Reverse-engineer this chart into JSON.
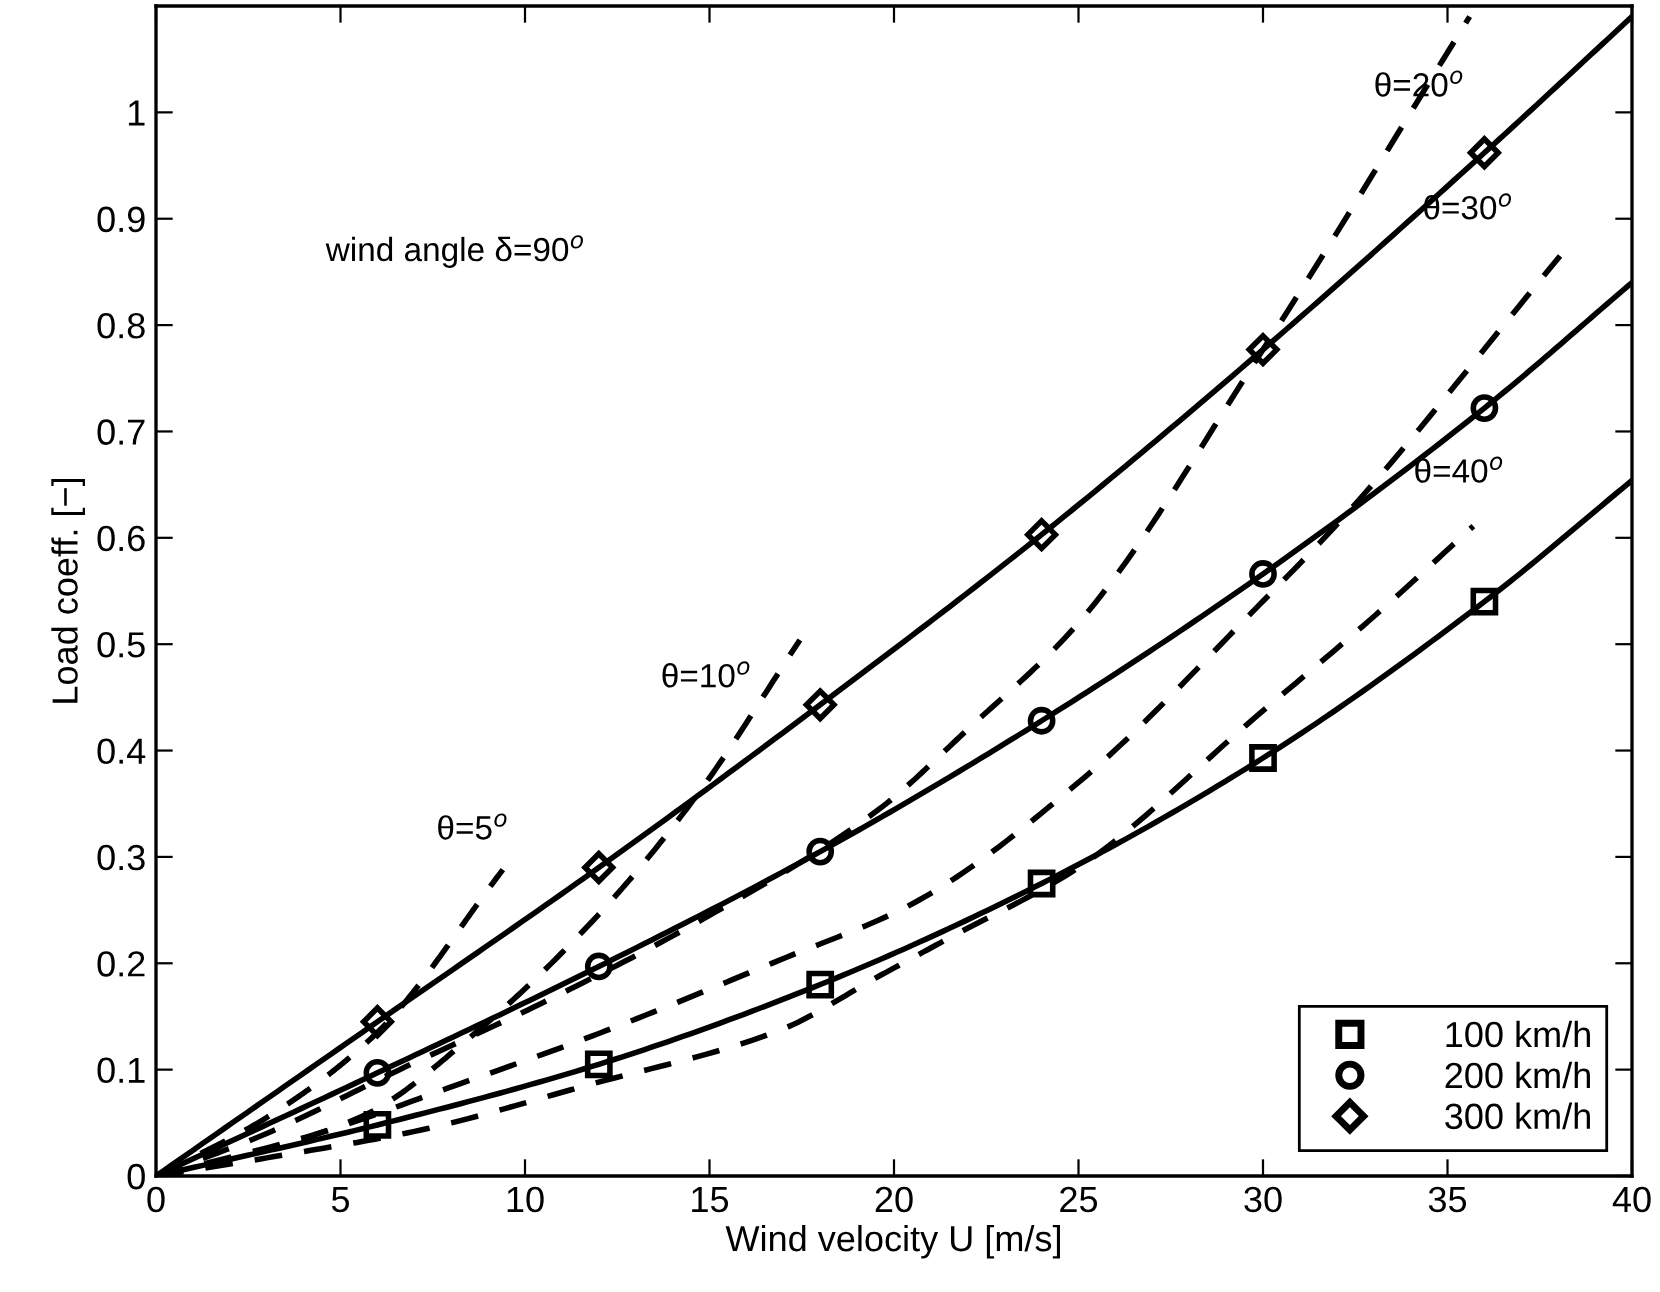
{
  "chart_data": {
    "type": "line",
    "xlabel": "Wind velocity U [m/s]",
    "ylabel": "Load coeff. [−]",
    "xlim": [
      0,
      40
    ],
    "ylim": [
      0,
      1.1
    ],
    "xticks": [
      0,
      5,
      10,
      15,
      20,
      25,
      30,
      35,
      40
    ],
    "yticks": [
      0,
      {
        "value": 0.1,
        "label": "0.1"
      },
      {
        "value": 0.2,
        "label": "0.2"
      },
      {
        "value": 0.3,
        "label": "0.3"
      },
      {
        "value": 0.4,
        "label": "0.4"
      },
      {
        "value": 0.5,
        "label": "0.5"
      },
      {
        "value": 0.6,
        "label": "0.6"
      },
      {
        "value": 0.7,
        "label": "0.7"
      },
      {
        "value": 0.8,
        "label": "0.8"
      },
      {
        "value": 0.9,
        "label": "0.9"
      },
      1
    ],
    "grid": false,
    "legend": "bottom right",
    "series": [
      {
        "color": "#000000",
        "line_style": "solid",
        "marker": "none",
        "x": [
          0,
          6,
          12,
          18,
          24,
          30,
          36,
          40
        ],
        "values": [
          0,
          0.048,
          0.105,
          0.18,
          0.275,
          0.393,
          0.54,
          0.654
        ]
      },
      {
        "color": "#000000",
        "line_style": "solid",
        "marker": "none",
        "x": [
          0,
          6,
          12,
          18,
          24,
          30,
          36,
          40
        ],
        "values": [
          0,
          0.097,
          0.197,
          0.305,
          0.428,
          0.566,
          0.722,
          0.84
        ]
      },
      {
        "color": "#000000",
        "line_style": "solid",
        "marker": "none",
        "x": [
          0,
          6,
          12,
          18,
          24,
          30,
          36,
          40
        ],
        "values": [
          0,
          0.145,
          0.29,
          0.443,
          0.603,
          0.777,
          0.962,
          1.09
        ]
      },
      {
        "color": "#000000",
        "line_style": "dashed",
        "marker": "none",
        "x": [
          0,
          3,
          6,
          9.4
        ],
        "values": [
          0,
          0.055,
          0.135,
          0.288
        ]
      },
      {
        "color": "#000000",
        "line_style": "dashed",
        "marker": "none",
        "x": [
          0,
          3,
          5.7,
          8.6,
          12,
          14.7,
          17.45
        ],
        "values": [
          0,
          0.025,
          0.058,
          0.133,
          0.246,
          0.36,
          0.504
        ]
      },
      {
        "color": "#000000",
        "line_style": "dashed",
        "marker": "none",
        "x": [
          0,
          3,
          6.6,
          10.6,
          15,
          19.6,
          22,
          25,
          30,
          35.6
        ],
        "values": [
          0,
          0.04,
          0.1,
          0.165,
          0.245,
          0.345,
          0.42,
          0.52,
          0.777,
          1.09
        ]
      },
      {
        "color": "#000000",
        "line_style": "dashed",
        "marker": "none",
        "x": [
          0,
          4.4,
          8.1,
          12,
          16.9,
          20.5,
          25,
          29.9,
          32.25,
          38.05
        ],
        "values": [
          0,
          0.04,
          0.085,
          0.134,
          0.203,
          0.256,
          0.37,
          0.537,
          0.622,
          0.865
        ]
      },
      {
        "color": "#000000",
        "line_style": "dashed",
        "marker": "none",
        "x": [
          0,
          3.5,
          7.15,
          11.65,
          16.9,
          19.6,
          21.4,
          25,
          29.75,
          33.2,
          35.7
        ],
        "values": [
          0,
          0.02,
          0.043,
          0.085,
          0.137,
          0.188,
          0.222,
          0.29,
          0.43,
          0.532,
          0.611
        ]
      },
      {
        "type": "scatter",
        "name": "100 km/h",
        "color": "#000000",
        "marker": "square",
        "x": [
          6,
          12,
          18,
          24,
          30,
          36
        ],
        "values": [
          0.048,
          0.105,
          0.18,
          0.275,
          0.393,
          0.54
        ]
      },
      {
        "type": "scatter",
        "name": "200 km/h",
        "color": "#000000",
        "marker": "circle",
        "x": [
          6,
          12,
          18,
          24,
          30,
          36
        ],
        "values": [
          0.097,
          0.197,
          0.305,
          0.428,
          0.566,
          0.722
        ]
      },
      {
        "type": "scatter",
        "name": "300 km/h",
        "color": "#000000",
        "marker": "diamond",
        "x": [
          6,
          12,
          18,
          24,
          30,
          36
        ],
        "values": [
          0.145,
          0.29,
          0.443,
          0.603,
          0.777,
          0.962
        ]
      }
    ],
    "annotations": [
      "wind angle δ=90$^{o}$",
      "θ=5$^{o}$",
      "θ=10$^{o}$",
      "θ=20$^{o}$",
      "θ=30$^{o}$",
      "θ=40$^{o}$"
    ]
  }
}
